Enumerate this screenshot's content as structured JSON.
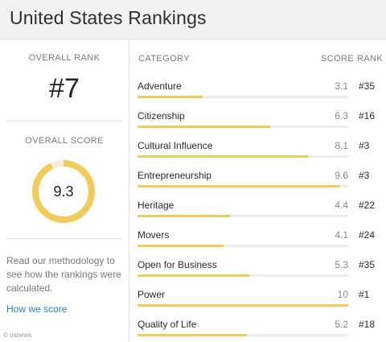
{
  "header": {
    "title": "United States Rankings"
  },
  "overall": {
    "rank_label": "OVERALL RANK",
    "rank_value": "#7",
    "score_label": "OVERALL SCORE",
    "score_value": "9.3",
    "score_fraction": 0.93
  },
  "methodology": {
    "text": "Read our methodology to see how the rankings were calculated.",
    "link_label": "How we score"
  },
  "table": {
    "headers": {
      "category": "CATEGORY",
      "score": "SCORE",
      "rank": "RANK"
    },
    "rows": [
      {
        "category": "Adventure",
        "score": "3.1",
        "rank": "#35",
        "value": 3.1
      },
      {
        "category": "Citizenship",
        "score": "6.3",
        "rank": "#16",
        "value": 6.3
      },
      {
        "category": "Cultural Influence",
        "score": "8.1",
        "rank": "#3",
        "value": 8.1
      },
      {
        "category": "Entrepreneurship",
        "score": "9.6",
        "rank": "#3",
        "value": 9.6
      },
      {
        "category": "Heritage",
        "score": "4.4",
        "rank": "#22",
        "value": 4.4
      },
      {
        "category": "Movers",
        "score": "4.1",
        "rank": "#24",
        "value": 4.1
      },
      {
        "category": "Open for Business",
        "score": "5.3",
        "rank": "#35",
        "value": 5.3
      },
      {
        "category": "Power",
        "score": "10",
        "rank": "#1",
        "value": 10
      },
      {
        "category": "Quality of Life",
        "score": "5.2",
        "rank": "#18",
        "value": 5.2
      }
    ],
    "max_score": 10
  },
  "credit": "© usnews",
  "colors": {
    "accent": "#f1cc5a",
    "link": "#2a7fc1"
  }
}
